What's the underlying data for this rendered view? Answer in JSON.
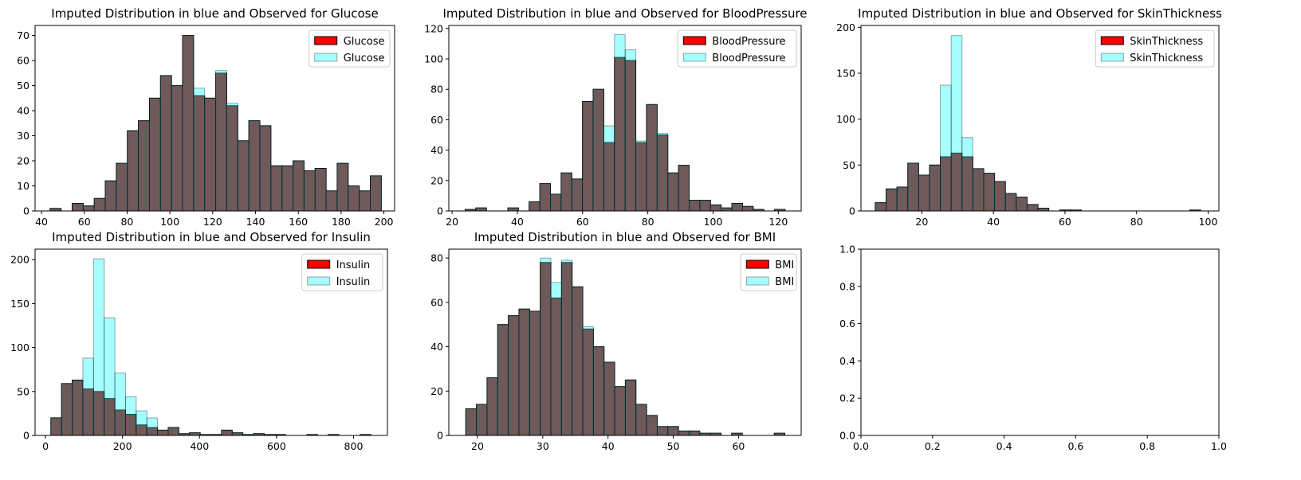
{
  "colors": {
    "observed": "#ff0000",
    "imputed": "#00ffff"
  },
  "chart_data": [
    {
      "type": "bar",
      "title": "Imputed Distribution in blue and Observed for Glucose",
      "legend": [
        "Glucose",
        "Glucose"
      ],
      "legend_position": "top-right",
      "xlim": [
        37,
        205
      ],
      "ylim": [
        0,
        74
      ],
      "xticks": [
        40,
        60,
        80,
        100,
        120,
        140,
        160,
        180,
        200
      ],
      "yticks": [
        0,
        10,
        20,
        30,
        40,
        50,
        60,
        70
      ],
      "bin_start": 44,
      "bin_width": 5.16,
      "observed": [
        1,
        0,
        3,
        2,
        5,
        12,
        19,
        32,
        36,
        45,
        54,
        50,
        70,
        46,
        45,
        55,
        42,
        28,
        36,
        34,
        18,
        18,
        20,
        16,
        17,
        8,
        19,
        10,
        8,
        14
      ],
      "imputed": [
        1,
        0,
        3,
        2,
        5,
        12,
        19,
        32,
        36,
        45,
        54,
        50,
        70,
        49,
        45,
        56,
        43,
        28,
        36,
        34,
        18,
        18,
        20,
        16,
        17,
        8,
        19,
        10,
        8,
        14
      ]
    },
    {
      "type": "bar",
      "title": "Imputed Distribution in blue and Observed for BloodPressure",
      "legend": [
        "BloodPressure",
        "BloodPressure"
      ],
      "legend_position": "top-right",
      "xlim": [
        19,
        127
      ],
      "ylim": [
        0,
        122
      ],
      "xticks": [
        20,
        40,
        60,
        80,
        100,
        120
      ],
      "yticks": [
        0,
        20,
        40,
        60,
        80,
        100,
        120
      ],
      "bin_start": 24,
      "bin_width": 3.27,
      "observed": [
        1,
        2,
        0,
        0,
        2,
        0,
        6,
        18,
        11,
        25,
        21,
        72,
        80,
        45,
        101,
        99,
        45,
        70,
        50,
        25,
        30,
        7,
        7,
        4,
        2,
        5,
        3,
        1,
        0,
        1
      ],
      "imputed": [
        1,
        2,
        0,
        0,
        2,
        0,
        6,
        18,
        11,
        25,
        21,
        72,
        80,
        56,
        116,
        106,
        46,
        70,
        51,
        25,
        30,
        7,
        7,
        4,
        2,
        5,
        3,
        1,
        0,
        1
      ]
    },
    {
      "type": "bar",
      "title": "Imputed Distribution in blue and Observed for SkinThickness",
      "legend": [
        "SkinThickness",
        "SkinThickness"
      ],
      "legend_position": "top-right",
      "xlim": [
        3,
        103
      ],
      "ylim": [
        0,
        202
      ],
      "xticks": [
        20,
        40,
        60,
        80,
        100
      ],
      "yticks": [
        0,
        50,
        100,
        150,
        200
      ],
      "bin_start": 7,
      "bin_width": 3.03,
      "observed": [
        9,
        24,
        26,
        52,
        39,
        50,
        59,
        63,
        59,
        46,
        41,
        32,
        19,
        15,
        7,
        3,
        0,
        1,
        1,
        0,
        0,
        0,
        0,
        0,
        0,
        0,
        0,
        0,
        0,
        1
      ],
      "imputed": [
        9,
        24,
        26,
        52,
        39,
        50,
        137,
        191,
        80,
        46,
        41,
        32,
        19,
        15,
        7,
        3,
        0,
        1,
        1,
        0,
        0,
        0,
        0,
        0,
        0,
        0,
        0,
        0,
        0,
        1
      ]
    },
    {
      "type": "bar",
      "title": "Imputed Distribution in blue and Observed for Insulin",
      "legend": [
        "Insulin",
        "Insulin"
      ],
      "legend_position": "top-right",
      "xlim": [
        -27,
        888
      ],
      "ylim": [
        0,
        212
      ],
      "xticks": [
        0,
        200,
        400,
        600,
        800
      ],
      "yticks": [
        0,
        50,
        100,
        150,
        200
      ],
      "bin_start": 14,
      "bin_width": 27.7,
      "observed": [
        20,
        59,
        63,
        53,
        50,
        42,
        29,
        24,
        12,
        9,
        6,
        9,
        2,
        3,
        1,
        1,
        6,
        3,
        1,
        2,
        1,
        1,
        0,
        0,
        1,
        0,
        1,
        0,
        0,
        1
      ],
      "imputed": [
        20,
        59,
        63,
        88,
        201,
        134,
        71,
        44,
        28,
        20,
        6,
        9,
        2,
        3,
        1,
        1,
        6,
        3,
        1,
        2,
        1,
        1,
        0,
        0,
        1,
        0,
        1,
        0,
        0,
        1
      ]
    },
    {
      "type": "bar",
      "title": "Imputed Distribution in blue and Observed for BMI",
      "legend": [
        "BMI",
        "BMI"
      ],
      "legend_position": "top-right",
      "xlim": [
        15.6,
        69.6
      ],
      "ylim": [
        0,
        84
      ],
      "xticks": [
        20,
        30,
        40,
        50,
        60
      ],
      "yticks": [
        0,
        20,
        40,
        60,
        80
      ],
      "bin_start": 18.2,
      "bin_width": 1.63,
      "observed": [
        12,
        14,
        26,
        50,
        54,
        57,
        56,
        78,
        62,
        78,
        67,
        48,
        40,
        33,
        22,
        25,
        14,
        9,
        4,
        4,
        2,
        2,
        1,
        1,
        0,
        1,
        0,
        0,
        0,
        1
      ],
      "imputed": [
        12,
        14,
        26,
        50,
        54,
        57,
        56,
        80,
        69,
        79,
        67,
        49,
        40,
        33,
        22,
        25,
        14,
        9,
        4,
        4,
        2,
        2,
        1,
        1,
        0,
        1,
        0,
        0,
        0,
        1
      ]
    },
    {
      "type": "bar",
      "title": "",
      "empty": true,
      "xlim": [
        0,
        1
      ],
      "ylim": [
        0,
        1
      ],
      "xticks": [
        0.0,
        0.2,
        0.4,
        0.6,
        0.8,
        1.0
      ],
      "yticks": [
        0.0,
        0.2,
        0.4,
        0.6,
        0.8,
        1.0
      ]
    }
  ]
}
